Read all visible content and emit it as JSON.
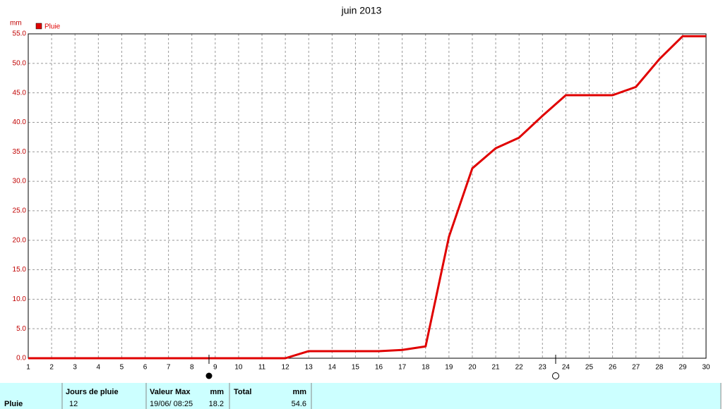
{
  "chart_data": {
    "type": "line",
    "title": "juin 2013",
    "y_unit": "mm",
    "x": [
      1,
      2,
      3,
      4,
      5,
      6,
      7,
      8,
      9,
      10,
      11,
      12,
      13,
      14,
      15,
      16,
      17,
      18,
      19,
      20,
      21,
      22,
      23,
      24,
      25,
      26,
      27,
      28,
      29,
      30
    ],
    "series": [
      {
        "name": "Pluie",
        "color": "#e00000",
        "values": [
          0,
          0,
          0,
          0,
          0,
          0,
          0,
          0,
          0,
          0,
          0,
          0,
          1.2,
          1.2,
          1.2,
          1.2,
          1.4,
          2.0,
          20.6,
          32.2,
          35.6,
          37.4,
          41.1,
          44.6,
          44.6,
          44.6,
          46.0,
          50.7,
          54.6,
          54.6
        ]
      }
    ],
    "xlim": [
      1,
      30
    ],
    "xticks": [
      1,
      2,
      3,
      4,
      5,
      6,
      7,
      8,
      9,
      10,
      11,
      12,
      13,
      14,
      15,
      16,
      17,
      18,
      19,
      20,
      21,
      22,
      23,
      24,
      25,
      26,
      27,
      28,
      29,
      30
    ],
    "ylim": [
      0,
      55
    ],
    "yticks": [
      {
        "value": 0,
        "label": "0.0"
      },
      {
        "value": 5,
        "label": "5.0"
      },
      {
        "value": 10,
        "label": "10.0"
      },
      {
        "value": 15,
        "label": "15.0"
      },
      {
        "value": 20,
        "label": "20.0"
      },
      {
        "value": 25,
        "label": "25.0"
      },
      {
        "value": 30,
        "label": "30.0"
      },
      {
        "value": 35,
        "label": "35.0"
      },
      {
        "value": 40,
        "label": "40.0"
      },
      {
        "value": 45,
        "label": "45.0"
      },
      {
        "value": 50,
        "label": "50.0"
      },
      {
        "value": 55,
        "label": "55.0"
      }
    ],
    "grid": true,
    "legend": "top-left"
  },
  "table": {
    "headers": [
      "Jours de pluie",
      "Valeur Max",
      "mm",
      "Total",
      "mm"
    ],
    "rows": [
      {
        "label": "Pluie",
        "jours": 12,
        "max_date": "19/06/ 08:25",
        "max": 18.2,
        "total": 54.6
      }
    ]
  }
}
